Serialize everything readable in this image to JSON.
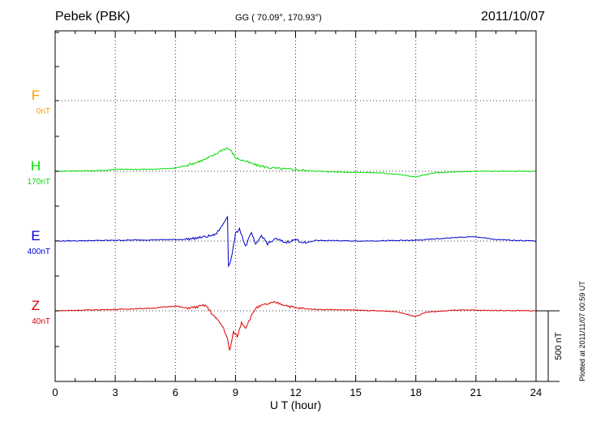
{
  "header": {
    "station": "Pebek (PBK)",
    "coords": "GG ( 70.09°, 170.93°)",
    "date": "2011/10/07"
  },
  "plotted": "Plotted at 2011/11/07 00:59 UT",
  "scale_label": "500 nT",
  "chart_data": {
    "type": "line",
    "title": "Pebek (PBK)",
    "xlabel": "U T (hour)",
    "xlim": [
      0,
      24
    ],
    "xticks": [
      "0",
      "3",
      "6",
      "9",
      "12",
      "15",
      "18",
      "21",
      "24"
    ],
    "grid": true,
    "scale_bar_nT": 500,
    "series": [
      {
        "name": "F",
        "baseline_label": "0nT",
        "color": "#ff9900",
        "values": []
      },
      {
        "name": "H",
        "baseline_label": "170nT",
        "color": "#00dd00",
        "x": [
          0,
          2.5,
          3,
          4,
          5,
          6,
          6.5,
          7,
          7.5,
          8,
          8.3,
          8.6,
          8.8,
          9,
          9.3,
          9.6,
          10,
          10.5,
          11,
          11.5,
          12,
          12.5,
          14,
          16,
          17,
          17.5,
          18,
          18.5,
          19,
          21,
          24
        ],
        "values": [
          0,
          5,
          15,
          12,
          15,
          22,
          40,
          60,
          85,
          120,
          150,
          165,
          140,
          95,
          80,
          65,
          45,
          30,
          20,
          15,
          12,
          5,
          -5,
          -10,
          -20,
          -30,
          -40,
          -25,
          -10,
          0,
          0
        ]
      },
      {
        "name": "E",
        "baseline_label": "400nT",
        "color": "#0000cc",
        "x": [
          0,
          3,
          6,
          6.5,
          7,
          7.5,
          8,
          8.3,
          8.5,
          8.6,
          8.65,
          8.8,
          9,
          9.2,
          9.5,
          9.8,
          10,
          10.3,
          10.6,
          11,
          11.5,
          12,
          12.5,
          13,
          15,
          18,
          20,
          21,
          22,
          24
        ],
        "values": [
          0,
          5,
          10,
          12,
          20,
          30,
          45,
          100,
          150,
          180,
          -180,
          -120,
          50,
          90,
          -40,
          60,
          -30,
          40,
          -20,
          15,
          -10,
          10,
          -15,
          5,
          0,
          5,
          25,
          30,
          10,
          0
        ]
      },
      {
        "name": "Z",
        "baseline_label": "40nT",
        "color": "#dd0000",
        "x": [
          0,
          3,
          5,
          6,
          6.5,
          7,
          7.5,
          8,
          8.2,
          8.4,
          8.6,
          8.7,
          8.75,
          8.9,
          9.1,
          9.3,
          9.5,
          10,
          10.5,
          11,
          11.5,
          12,
          13,
          15,
          17,
          18,
          18.5,
          20,
          24
        ],
        "values": [
          0,
          10,
          20,
          35,
          20,
          25,
          40,
          -50,
          -80,
          -120,
          -200,
          -280,
          -260,
          -150,
          -180,
          -80,
          -120,
          20,
          45,
          60,
          40,
          20,
          10,
          5,
          -5,
          -40,
          -10,
          5,
          0
        ]
      }
    ]
  }
}
